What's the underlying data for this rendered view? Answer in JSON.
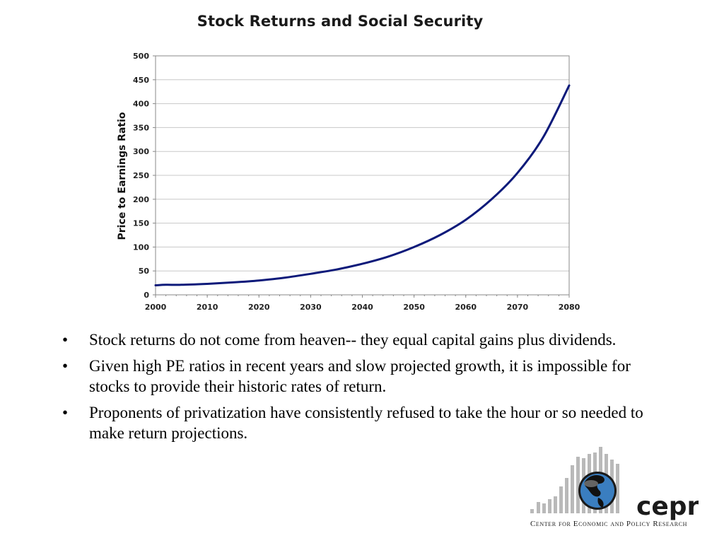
{
  "slide": {
    "title": "Stock Returns and Social Security",
    "bullets": [
      "Stock returns do not come from heaven-- they equal capital gains plus dividends.",
      "Given high PE ratios in recent years and slow projected growth, it is impossible for stocks to provide their historic rates of return.",
      "Proponents of privatization have consistently refused to take the hour or so needed to make return projections."
    ],
    "bullet_symbol": "•"
  },
  "chart_data": {
    "type": "line",
    "title": "Stock Returns and Social Security",
    "xlabel": "",
    "ylabel": "Price to Earnings Ratio",
    "xlim": [
      2000,
      2080
    ],
    "ylim": [
      0,
      500
    ],
    "x_ticks": [
      2000,
      2010,
      2020,
      2030,
      2040,
      2050,
      2060,
      2070,
      2080
    ],
    "y_ticks": [
      0,
      50,
      100,
      150,
      200,
      250,
      300,
      350,
      400,
      450,
      500
    ],
    "grid": true,
    "legend": "none",
    "line_color": "#0d1a7a",
    "series": [
      {
        "x": [
          2000,
          2002,
          2005,
          2010,
          2015,
          2020,
          2025,
          2030,
          2035,
          2040,
          2045,
          2050,
          2055,
          2060,
          2065,
          2070,
          2075,
          2080
        ],
        "values": [
          20,
          21,
          21,
          23,
          26,
          30,
          36,
          44,
          53,
          65,
          80,
          100,
          125,
          157,
          200,
          255,
          330,
          438
        ]
      }
    ]
  },
  "logo": {
    "word": "cepr",
    "subtitle": "Center for Economic and Policy Research"
  },
  "colors": {
    "line": "#0d1a7a",
    "grid": "#c8c8c8",
    "axis": "#888888",
    "globe_ocean": "#3a7ec0"
  }
}
